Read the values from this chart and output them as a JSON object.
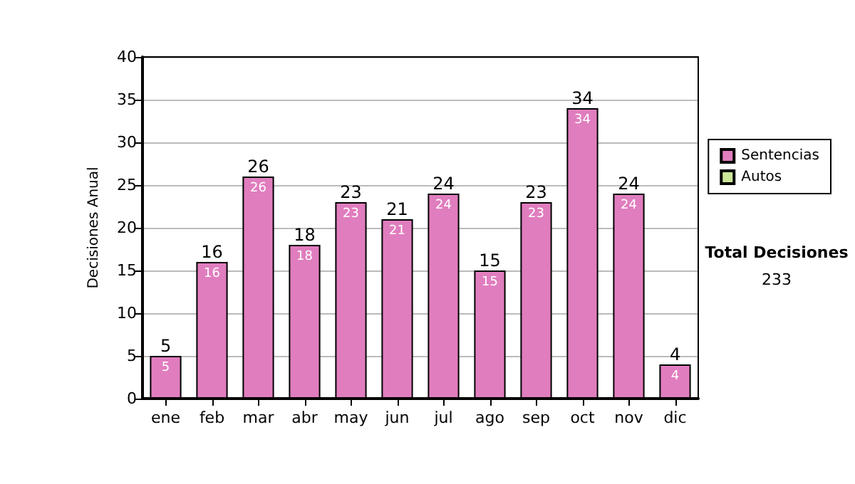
{
  "chart_data": {
    "type": "bar",
    "ylabel": "Decisiones Anual",
    "categories": [
      "ene",
      "feb",
      "mar",
      "abr",
      "may",
      "jun",
      "jul",
      "ago",
      "sep",
      "oct",
      "nov",
      "dic"
    ],
    "series": [
      {
        "name": "Sentencias",
        "color": "#e07dbe",
        "values": [
          5,
          16,
          26,
          18,
          23,
          21,
          24,
          15,
          23,
          34,
          24,
          4
        ],
        "value_labels": [
          "5",
          "16",
          "26",
          "18",
          "23",
          "21",
          "24",
          "15",
          "23",
          "34",
          "24",
          "4"
        ]
      },
      {
        "name": "Autos",
        "color": "#cce69a",
        "values": [
          0,
          0,
          0,
          0,
          0,
          0,
          0,
          0,
          0,
          0,
          0,
          0
        ]
      }
    ],
    "stacked": true,
    "totals": [
      "5",
      "16",
      "26",
      "18",
      "23",
      "21",
      "24",
      "15",
      "23",
      "34",
      "24",
      "4"
    ],
    "ylim": [
      0,
      40
    ],
    "yticks": [
      0,
      5,
      10,
      15,
      20,
      25,
      30,
      35,
      40
    ],
    "grid": "y",
    "legend": "right",
    "annotations": [
      "Total Decisiones",
      "233"
    ]
  }
}
